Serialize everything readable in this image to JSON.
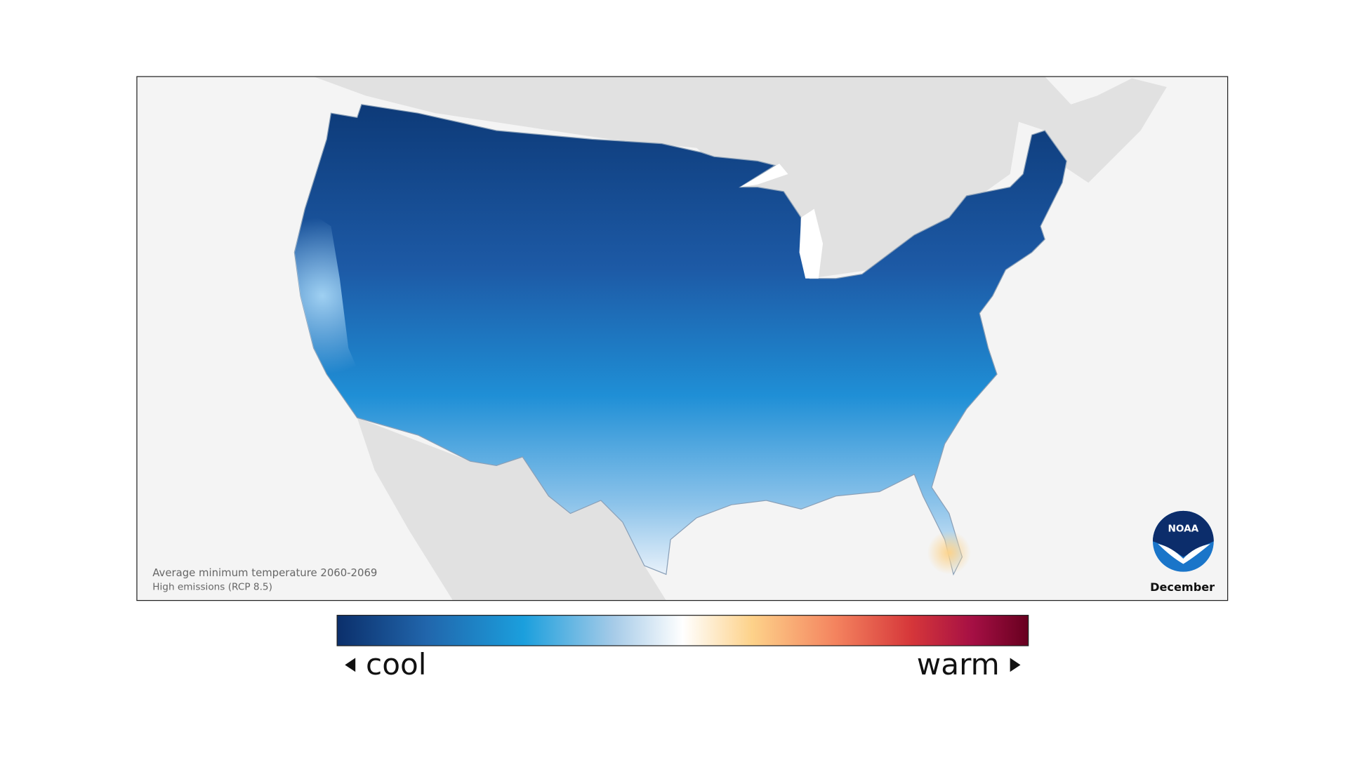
{
  "map": {
    "caption": "Average minimum temperature 2060-2069",
    "scenario": "High emissions (RCP 8.5)",
    "month": "December",
    "logo": "NOAA"
  },
  "legend": {
    "low": "cool",
    "high": "warm"
  }
}
